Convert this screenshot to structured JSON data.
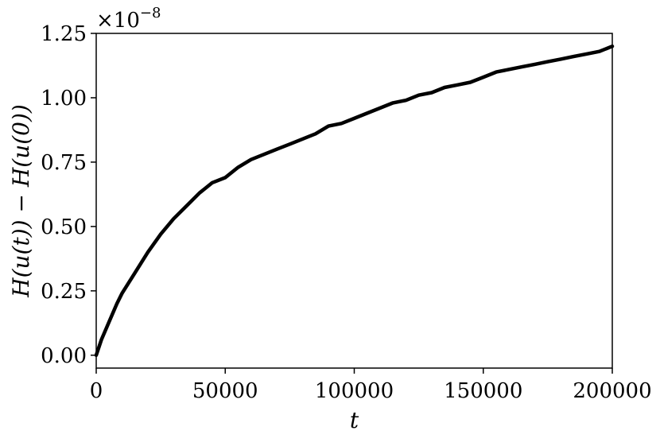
{
  "chart_data": {
    "type": "line",
    "title": "",
    "xlabel": "t",
    "ylabel": "H(u(t)) − H(u(0))",
    "y_offset_text": {
      "base": "×10",
      "exponent": "−8"
    },
    "xlim": [
      0,
      200000
    ],
    "ylim": [
      -0.05,
      1.25
    ],
    "x_ticks": [
      0,
      50000,
      100000,
      150000,
      200000
    ],
    "x_tick_labels": [
      "0",
      "50000",
      "100000",
      "150000",
      "200000"
    ],
    "y_ticks": [
      0.0,
      0.25,
      0.5,
      0.75,
      1.0,
      1.25
    ],
    "y_tick_labels": [
      "0.00",
      "0.25",
      "0.50",
      "0.75",
      "1.00",
      "1.25"
    ],
    "grid": false,
    "series": [
      {
        "color": "#000000",
        "x": [
          0,
          2000,
          5000,
          8000,
          10000,
          15000,
          20000,
          25000,
          30000,
          35000,
          40000,
          45000,
          50000,
          55000,
          60000,
          65000,
          70000,
          75000,
          80000,
          85000,
          90000,
          95000,
          100000,
          105000,
          110000,
          115000,
          120000,
          125000,
          130000,
          135000,
          140000,
          145000,
          150000,
          155000,
          160000,
          165000,
          170000,
          175000,
          180000,
          185000,
          190000,
          195000,
          200000
        ],
        "y": [
          0.0,
          0.06,
          0.13,
          0.2,
          0.24,
          0.32,
          0.4,
          0.47,
          0.53,
          0.58,
          0.63,
          0.67,
          0.69,
          0.73,
          0.76,
          0.78,
          0.8,
          0.82,
          0.84,
          0.86,
          0.89,
          0.9,
          0.92,
          0.94,
          0.96,
          0.98,
          0.99,
          1.01,
          1.02,
          1.04,
          1.05,
          1.06,
          1.08,
          1.1,
          1.11,
          1.12,
          1.13,
          1.14,
          1.15,
          1.16,
          1.17,
          1.18,
          1.2
        ]
      }
    ]
  }
}
